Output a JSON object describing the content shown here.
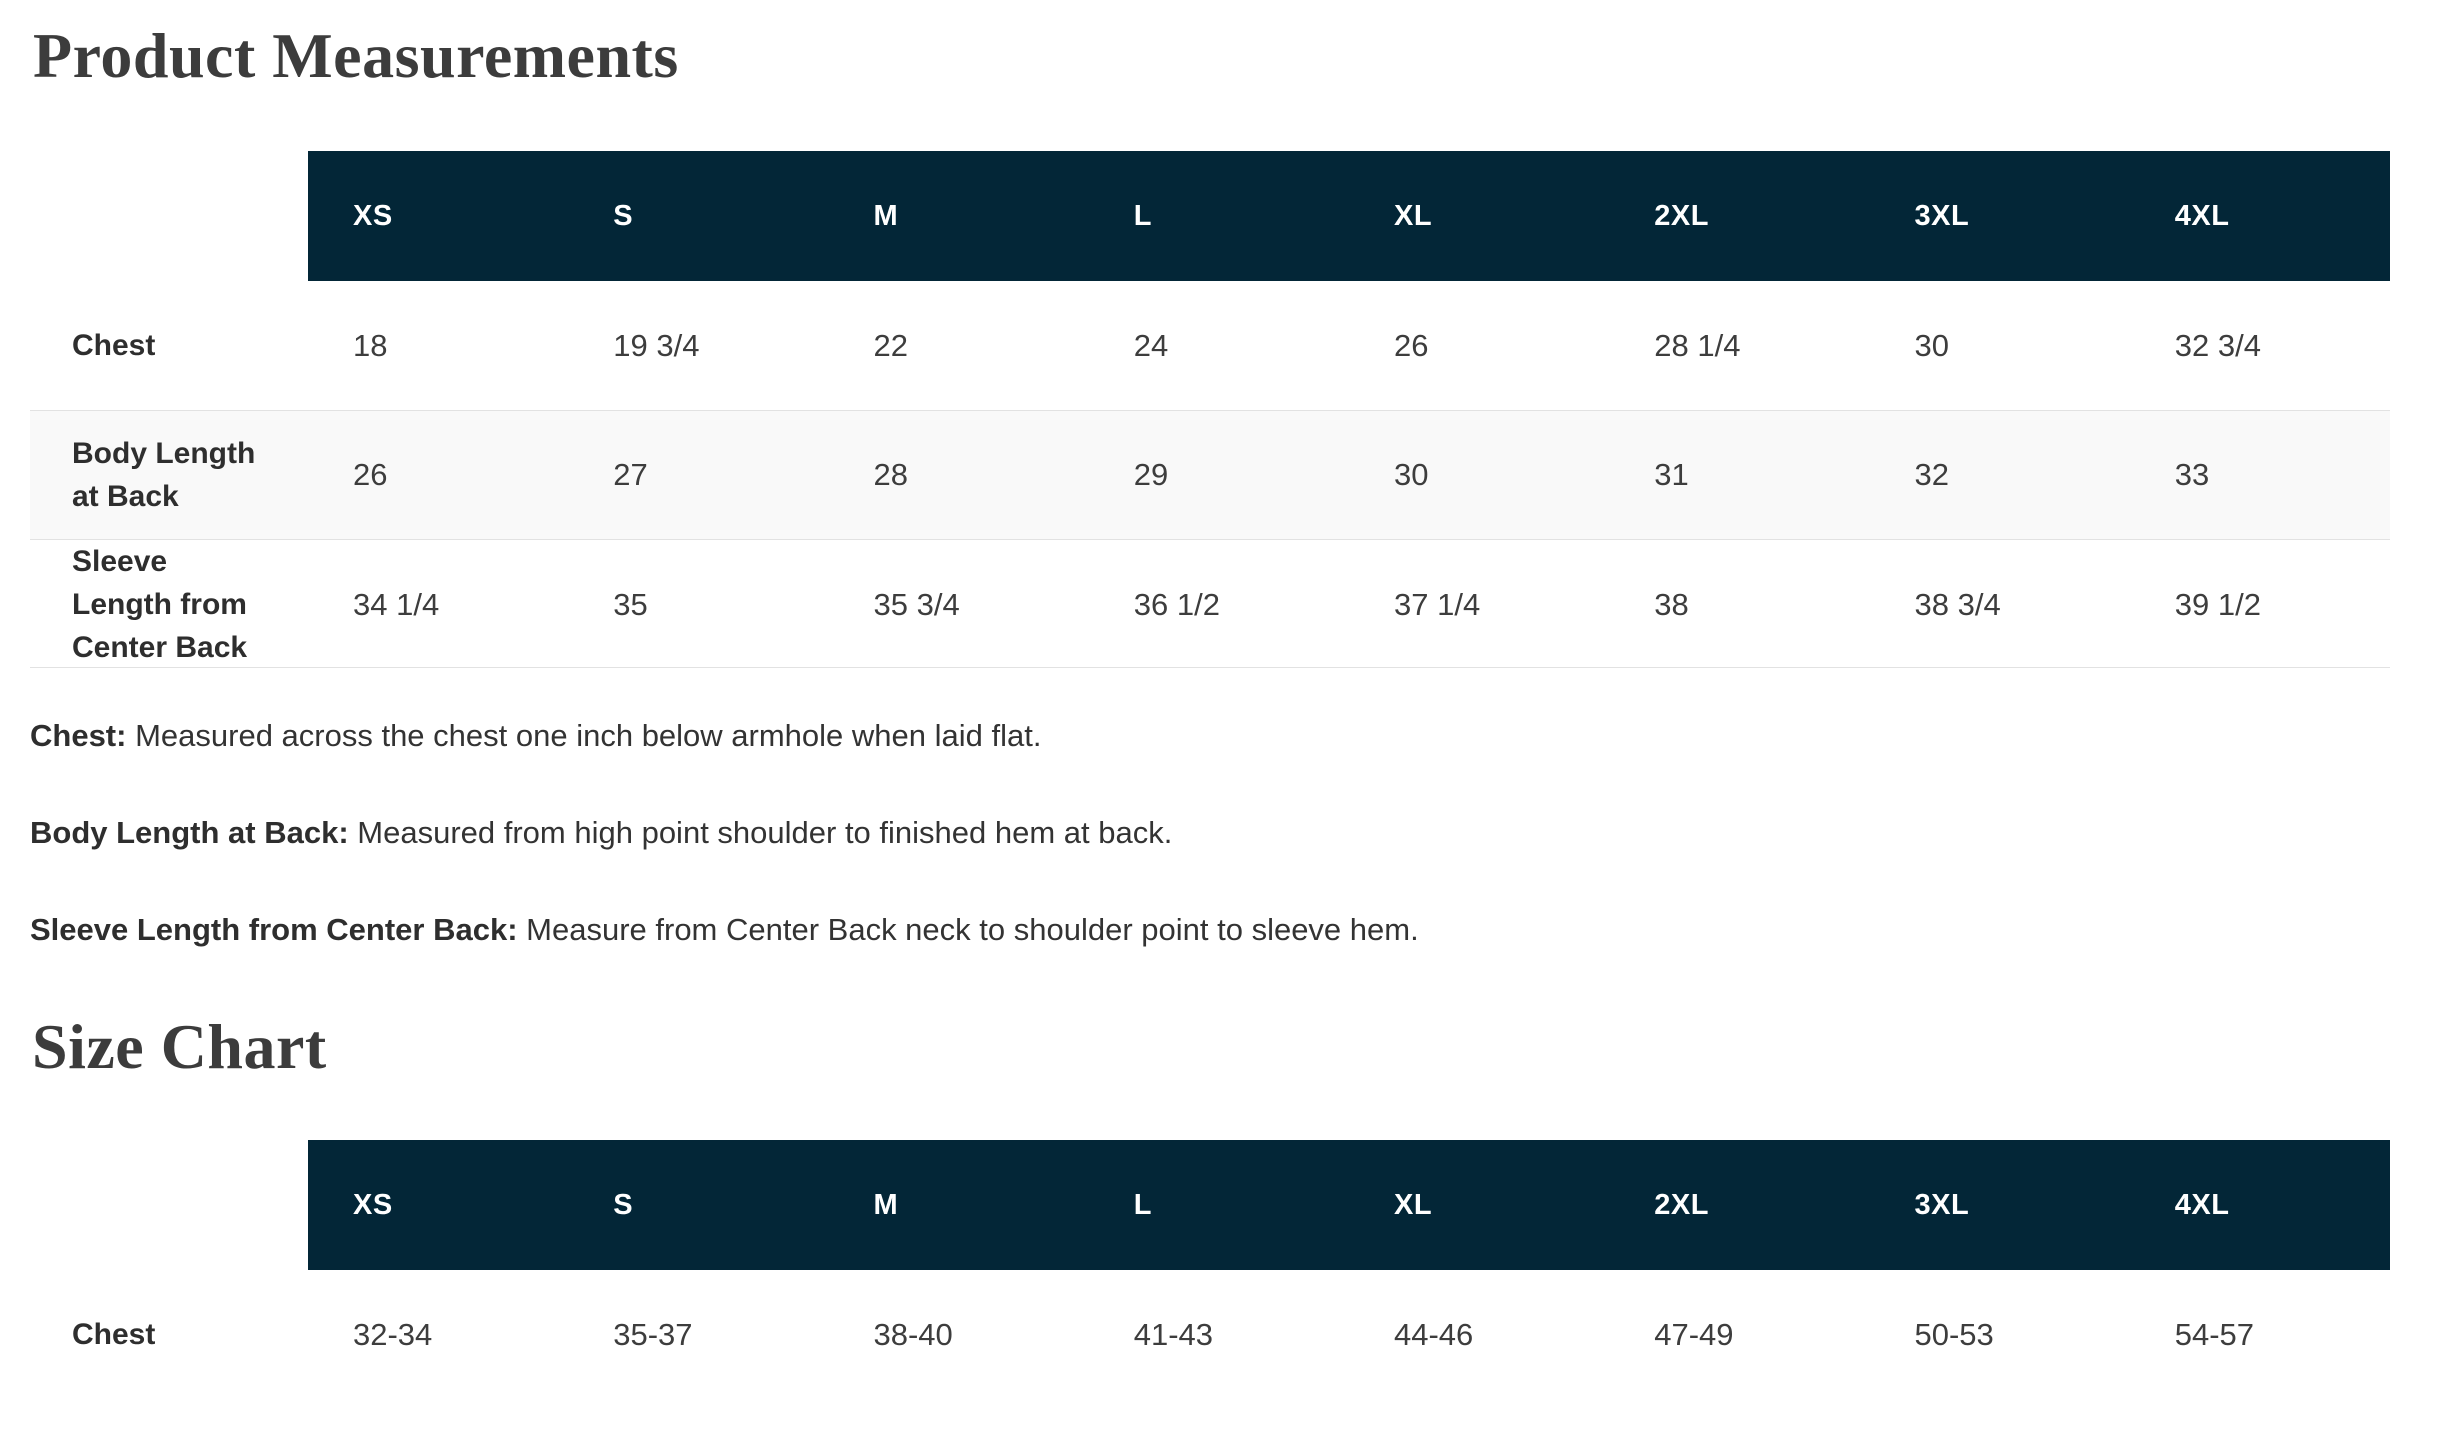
{
  "product_measurements": {
    "title": "Product Measurements",
    "sizes": [
      "XS",
      "S",
      "M",
      "L",
      "XL",
      "2XL",
      "3XL",
      "4XL"
    ],
    "rows": [
      {
        "label": "Chest",
        "values": [
          "18",
          "19 3/4",
          "22",
          "24",
          "26",
          "28 1/4",
          "30",
          "32 3/4"
        ]
      },
      {
        "label": "Body Length at Back",
        "values": [
          "26",
          "27",
          "28",
          "29",
          "30",
          "31",
          "32",
          "33"
        ]
      },
      {
        "label": "Sleeve Length from Center Back",
        "values": [
          "34 1/4",
          "35",
          "35 3/4",
          "36 1/2",
          "37 1/4",
          "38",
          "38 3/4",
          "39 1/2"
        ]
      }
    ],
    "notes": [
      {
        "term": "Chest:",
        "definition": "Measured across the chest one inch below armhole when laid flat."
      },
      {
        "term": "Body Length at Back:",
        "definition": "Measured from high point shoulder to finished hem at back."
      },
      {
        "term": "Sleeve Length from Center Back:",
        "definition": "Measure from Center Back neck to shoulder point to sleeve hem."
      }
    ]
  },
  "size_chart": {
    "title": "Size Chart",
    "sizes": [
      "XS",
      "S",
      "M",
      "L",
      "XL",
      "2XL",
      "3XL",
      "4XL"
    ],
    "rows": [
      {
        "label": "Chest",
        "values": [
          "32-34",
          "35-37",
          "38-40",
          "41-43",
          "44-46",
          "47-49",
          "50-53",
          "54-57"
        ]
      }
    ]
  },
  "colors": {
    "header_bg": "#032637",
    "header_text": "#ffffff",
    "alt_row_bg": "#f9f9f9",
    "border": "#e2e2e2",
    "heading_text": "#3c3c3c",
    "body_text": "#333333"
  }
}
